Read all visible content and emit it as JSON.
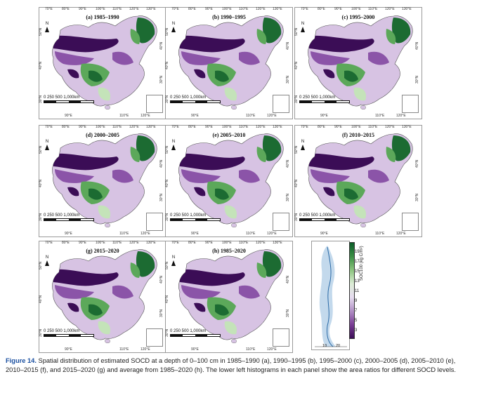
{
  "panels": [
    {
      "title": "(a) 1985–1990"
    },
    {
      "title": "(b) 1990–1995"
    },
    {
      "title": "(c) 1995–2000"
    },
    {
      "title": "(d) 2000–2005"
    },
    {
      "title": "(e) 2005–2010"
    },
    {
      "title": "(f) 2010–2015"
    },
    {
      "title": "(g) 2015–2020"
    },
    {
      "title": "(h) 1985–2020"
    }
  ],
  "map_labels": {
    "top_longitudes": [
      "70°E",
      "80°E",
      "90°E",
      "100°E",
      "110°E",
      "120°E",
      "130°E"
    ],
    "bottom_longitudes": [
      "90°E",
      "110°E",
      "120°E"
    ],
    "left_latitudes": [
      "50°N",
      "40°N",
      "30°N"
    ],
    "right_latitudes": [
      "40°N",
      "30°N",
      "20°N"
    ],
    "north": "N",
    "scale": "0   250  500        1,000km"
  },
  "legend": {
    "ticks": [
      "19",
      "17",
      "15",
      "13",
      "11",
      "9",
      "7",
      "5",
      "3"
    ],
    "title": "SOC100 (kg C/m²)",
    "hist_x_ticks": [
      "10",
      "20"
    ]
  },
  "caption": {
    "figure": "Figure 14.",
    "text": " Spatial distribution of estimated SOCD at a depth of 0–100 cm in 1985–1990 (a), 1990–1995 (b), 1995–2000 (c), 2000–2005 (d), 2005–2010 (e), 2010–2015 (f), and 2015–2020 (g) and average from 1985–2020 (h). The lower left histograms in each panel show the area ratios for different SOCD levels."
  },
  "colors": {
    "dark_purple": "#3b0d56",
    "mid_purple": "#8b54a8",
    "light_purple": "#d7c3e3",
    "light_green": "#c4e3b9",
    "mid_green": "#5ca85a",
    "dark_green": "#1c6b32",
    "caption_blue": "#1a4fa0"
  }
}
